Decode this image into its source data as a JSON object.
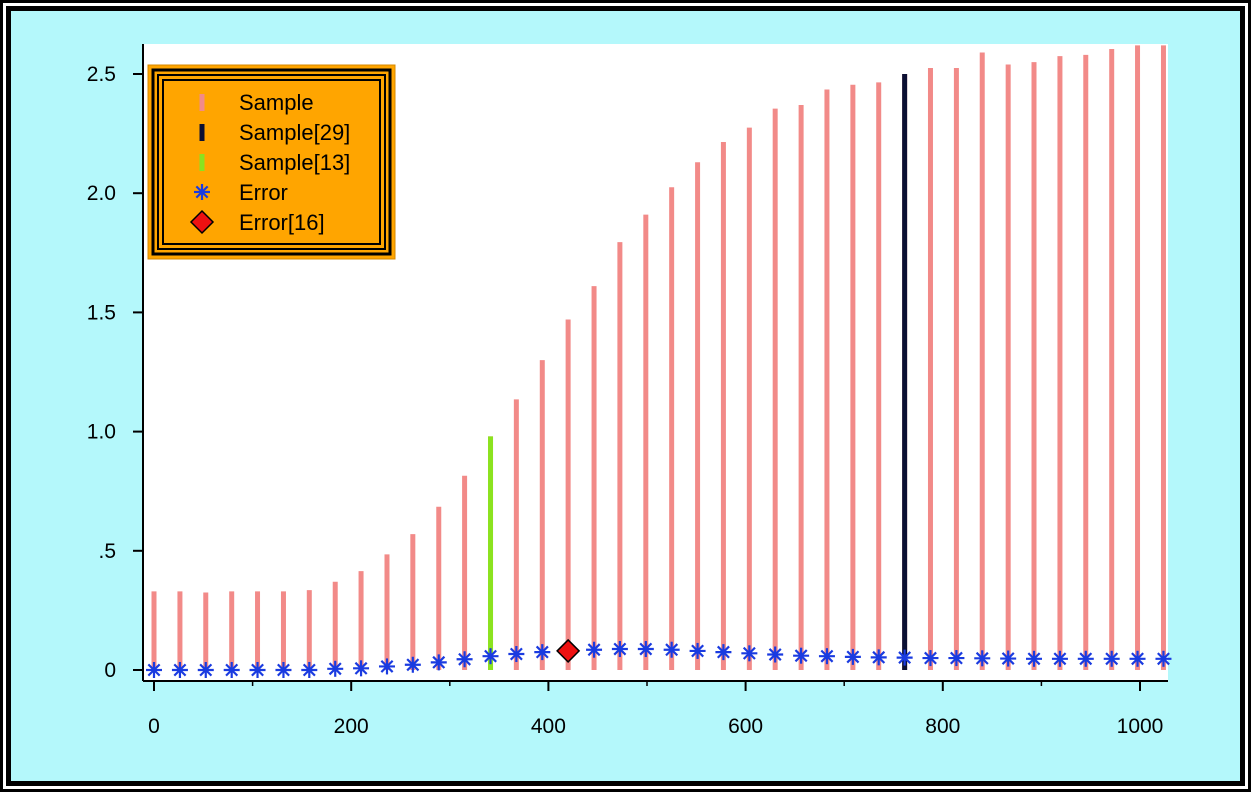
{
  "colors": {
    "outer_background": "#b4f8fb",
    "plot_background": "#ffffff",
    "frame": "#000000",
    "sample": "#f28a88",
    "sample_29": "#0b1033",
    "sample_13": "#8be31f",
    "error": "#1a3be0",
    "error_16": "#ee1111",
    "legend_fill": "#ffa500"
  },
  "legend": [
    {
      "label": "Sample",
      "symbol": "bar-pink"
    },
    {
      "label": "Sample[29]",
      "symbol": "bar-navy"
    },
    {
      "label": "Sample[13]",
      "symbol": "bar-green"
    },
    {
      "label": "Error",
      "symbol": "asterisk"
    },
    {
      "label": "Error[16]",
      "symbol": "diamond"
    }
  ],
  "chart_data": {
    "type": "bar",
    "x_ticks": [
      "0",
      "200",
      "400",
      "600",
      "800",
      "1000"
    ],
    "y_ticks": [
      "0",
      ".5",
      "1.0",
      "1.5",
      "2.0",
      "2.5"
    ],
    "xlim": [
      -15,
      1030
    ],
    "ylim": [
      -0.04,
      2.62
    ],
    "grid": false,
    "legend_position": "top-left",
    "series": [
      {
        "name": "Sample",
        "type": "bar",
        "x": [
          0,
          26.3,
          52.5,
          78.8,
          105,
          131.3,
          157.5,
          183.8,
          210,
          236.3,
          262.5,
          288.8,
          315,
          341.3,
          367.5,
          393.8,
          420,
          446.3,
          472.5,
          498.8,
          525,
          551.3,
          577.5,
          603.8,
          630,
          656.3,
          682.5,
          708.8,
          735,
          761.3,
          787.5,
          813.8,
          840,
          866.3,
          892.5,
          918.8,
          945,
          971.3,
          997.5,
          1023.8
        ],
        "values": [
          0.33,
          0.33,
          0.325,
          0.33,
          0.33,
          0.33,
          0.335,
          0.37,
          0.415,
          0.485,
          0.57,
          0.685,
          0.815,
          0.98,
          1.135,
          1.3,
          1.47,
          1.61,
          1.795,
          1.91,
          2.025,
          2.13,
          2.215,
          2.275,
          2.355,
          2.37,
          2.435,
          2.455,
          2.465,
          2.5,
          2.525,
          2.525,
          2.59,
          2.54,
          2.55,
          2.575,
          2.58,
          2.605,
          2.62,
          2.62
        ]
      },
      {
        "name": "Sample[29]",
        "type": "bar",
        "x": [
          761.3
        ],
        "values": [
          2.5
        ]
      },
      {
        "name": "Sample[13]",
        "type": "bar",
        "x": [
          341.3
        ],
        "values": [
          0.98
        ]
      },
      {
        "name": "Error",
        "type": "scatter",
        "x": [
          0,
          26.3,
          52.5,
          78.8,
          105,
          131.3,
          157.5,
          183.8,
          210,
          236.3,
          262.5,
          288.8,
          315,
          341.3,
          367.5,
          393.8,
          446.3,
          472.5,
          498.8,
          525,
          551.3,
          577.5,
          603.8,
          630,
          656.3,
          682.5,
          708.8,
          735,
          761.3,
          787.5,
          813.8,
          840,
          866.3,
          892.5,
          918.8,
          945,
          971.3,
          997.5,
          1023.8
        ],
        "values": [
          0.0,
          0.0,
          0.0,
          0.0,
          0.0,
          0.0,
          0.0,
          0.005,
          0.007,
          0.015,
          0.022,
          0.032,
          0.045,
          0.058,
          0.067,
          0.075,
          0.085,
          0.088,
          0.088,
          0.085,
          0.08,
          0.075,
          0.07,
          0.065,
          0.06,
          0.058,
          0.055,
          0.053,
          0.052,
          0.05,
          0.05,
          0.049,
          0.048,
          0.047,
          0.047,
          0.047,
          0.047,
          0.047,
          0.047
        ]
      },
      {
        "name": "Error[16]",
        "type": "scatter",
        "x": [
          420
        ],
        "values": [
          0.08
        ]
      }
    ]
  }
}
